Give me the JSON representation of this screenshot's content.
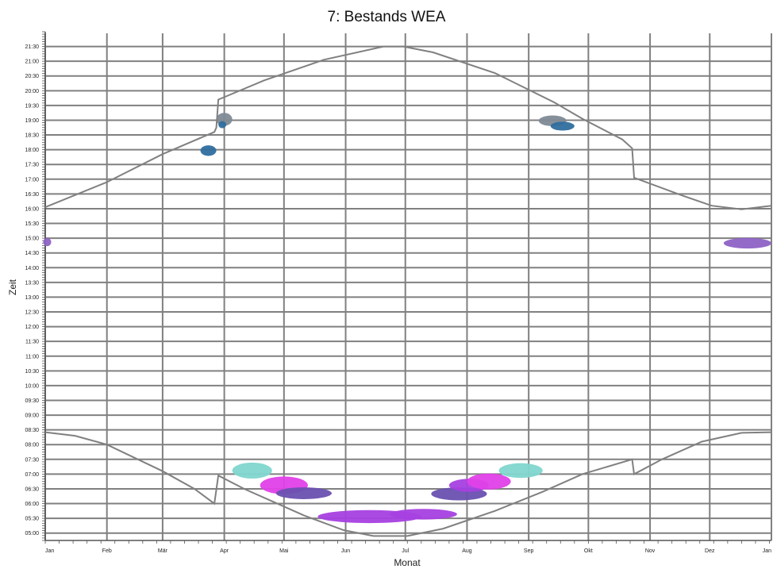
{
  "chart_data": {
    "type": "scatter",
    "title": "7: Bestands WEA",
    "xlabel": "Monat",
    "ylabel": "Zeit",
    "x_tick_labels": [
      "Jan",
      "Feb",
      "Mär",
      "Apr",
      "Mai",
      "Jun",
      "Jul",
      "Aug",
      "Sep",
      "Okt",
      "Nov",
      "Dez",
      "Jan"
    ],
    "y_tick_labels": [
      "05:00",
      "05:30",
      "06:00",
      "06:30",
      "07:00",
      "07:30",
      "08:00",
      "08:30",
      "09:00",
      "09:30",
      "10:00",
      "10:30",
      "11:00",
      "11:30",
      "12:00",
      "12:30",
      "13:00",
      "13:30",
      "14:00",
      "14:30",
      "15:00",
      "15:30",
      "16:00",
      "16:30",
      "17:00",
      "17:30",
      "18:00",
      "18:30",
      "19:00",
      "19:30",
      "20:00",
      "20:30",
      "21:00",
      "21:30"
    ],
    "xlim_days": [
      0,
      365
    ],
    "ylim_hours": [
      4.75,
      22.0
    ],
    "grid": true,
    "colors": {
      "grid": "#808080",
      "curve": "#808080",
      "teal": "#7fd6cf",
      "magenta": "#e040e8",
      "purple": "#a640e0",
      "slate_purple": "#6a50b0",
      "violet": "#8e62c6",
      "blue": "#2f6e9e",
      "steel_gray": "#7f8a96"
    },
    "sunset_curve": [
      [
        0,
        16.05
      ],
      [
        31,
        16.9
      ],
      [
        59,
        17.85
      ],
      [
        85,
        18.6
      ],
      [
        86,
        18.75
      ],
      [
        87,
        19.7
      ],
      [
        110,
        20.35
      ],
      [
        140,
        21.05
      ],
      [
        170,
        21.5
      ],
      [
        180,
        21.5
      ],
      [
        195,
        21.3
      ],
      [
        226,
        20.6
      ],
      [
        256,
        19.6
      ],
      [
        270,
        19.05
      ],
      [
        290,
        18.35
      ],
      [
        295,
        18.05
      ],
      [
        296,
        17.05
      ],
      [
        320,
        16.45
      ],
      [
        335,
        16.1
      ],
      [
        350,
        15.98
      ],
      [
        365,
        16.1
      ]
    ],
    "sunrise_curve": [
      [
        0,
        8.42
      ],
      [
        15,
        8.3
      ],
      [
        31,
        8.0
      ],
      [
        59,
        7.1
      ],
      [
        75,
        6.5
      ],
      [
        85,
        6.0
      ],
      [
        87,
        6.95
      ],
      [
        100,
        6.5
      ],
      [
        115,
        6.05
      ],
      [
        130,
        5.6
      ],
      [
        150,
        5.1
      ],
      [
        165,
        4.9
      ],
      [
        182,
        4.9
      ],
      [
        200,
        5.15
      ],
      [
        226,
        5.75
      ],
      [
        250,
        6.4
      ],
      [
        270,
        7.0
      ],
      [
        295,
        7.5
      ],
      [
        296,
        7.0
      ],
      [
        310,
        7.5
      ],
      [
        330,
        8.1
      ],
      [
        350,
        8.4
      ],
      [
        365,
        8.42
      ]
    ],
    "shadow_events": [
      {
        "name": "",
        "color": "teal",
        "cx": 104,
        "cy": 7.12,
        "rx": 10,
        "ry": 0.27
      },
      {
        "name": "",
        "color": "teal",
        "cx": 239,
        "cy": 7.12,
        "rx": 11,
        "ry": 0.25
      },
      {
        "name": "",
        "color": "magenta",
        "cx": 120,
        "cy": 6.62,
        "rx": 12,
        "ry": 0.3
      },
      {
        "name": "",
        "color": "slate_purple",
        "cx": 130,
        "cy": 6.35,
        "rx": 14,
        "ry": 0.2
      },
      {
        "name": "",
        "color": "purple",
        "cx": 163,
        "cy": 5.56,
        "rx": 26,
        "ry": 0.22
      },
      {
        "name": "",
        "color": "purple",
        "cx": 190,
        "cy": 5.64,
        "rx": 17,
        "ry": 0.18
      },
      {
        "name": "",
        "color": "slate_purple",
        "cx": 208,
        "cy": 6.33,
        "rx": 14,
        "ry": 0.22
      },
      {
        "name": "",
        "color": "purple",
        "cx": 213,
        "cy": 6.62,
        "rx": 10,
        "ry": 0.22
      },
      {
        "name": "",
        "color": "magenta",
        "cx": 223,
        "cy": 6.75,
        "rx": 11,
        "ry": 0.27
      },
      {
        "name": "",
        "color": "violet",
        "cx": 1,
        "cy": 14.87,
        "rx": 2,
        "ry": 0.14
      },
      {
        "name": "",
        "color": "violet",
        "cx": 353,
        "cy": 14.83,
        "rx": 12,
        "ry": 0.18
      },
      {
        "name": "",
        "color": "blue",
        "cx": 82,
        "cy": 17.97,
        "rx": 4,
        "ry": 0.18
      },
      {
        "name": "",
        "color": "steel_gray",
        "cx": 90,
        "cy": 19.03,
        "rx": 4,
        "ry": 0.22
      },
      {
        "name": "",
        "color": "blue",
        "cx": 89,
        "cy": 18.85,
        "rx": 2,
        "ry": 0.12
      },
      {
        "name": "",
        "color": "steel_gray",
        "cx": 255,
        "cy": 18.98,
        "rx": 7,
        "ry": 0.18
      },
      {
        "name": "",
        "color": "blue",
        "cx": 260,
        "cy": 18.8,
        "rx": 6,
        "ry": 0.15
      }
    ]
  }
}
